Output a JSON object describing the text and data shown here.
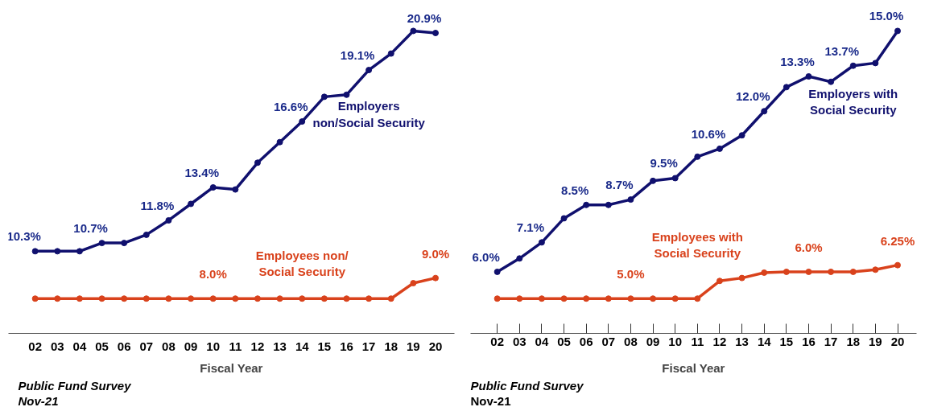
{
  "chart_data": [
    {
      "type": "line",
      "xlabel": "Fiscal Year",
      "categories": [
        "02",
        "03",
        "04",
        "05",
        "06",
        "07",
        "08",
        "09",
        "10",
        "11",
        "12",
        "13",
        "14",
        "15",
        "16",
        "17",
        "18",
        "19",
        "20"
      ],
      "marker": "circle",
      "grid": false,
      "series": [
        {
          "name": "Employers\nnon/Social Security",
          "color": "#10106e",
          "values": [
            10.3,
            10.3,
            10.3,
            10.7,
            10.7,
            11.1,
            11.8,
            12.6,
            13.4,
            13.3,
            14.6,
            15.6,
            16.6,
            17.8,
            17.9,
            19.1,
            19.9,
            21.0,
            20.9
          ],
          "value_labels": [
            "10.3%",
            null,
            null,
            "10.7%",
            null,
            null,
            "11.8%",
            null,
            "13.4%",
            null,
            null,
            null,
            "16.6%",
            null,
            null,
            "19.1%",
            null,
            null,
            "20.9%"
          ]
        },
        {
          "name": "Employees non/\nSocial Security",
          "color": "#d9421c",
          "values": [
            8.0,
            8.0,
            8.0,
            8.0,
            8.0,
            8.0,
            8.0,
            8.0,
            8.0,
            8.0,
            8.0,
            8.0,
            8.0,
            8.0,
            8.0,
            8.0,
            8.0,
            8.75,
            9.0
          ],
          "value_labels": [
            null,
            null,
            null,
            null,
            null,
            null,
            null,
            null,
            "8.0%",
            null,
            null,
            null,
            null,
            null,
            null,
            null,
            null,
            null,
            "9.0%"
          ]
        }
      ],
      "annotations": [
        "Public Fund Survey",
        "Nov-21"
      ]
    },
    {
      "type": "line",
      "xlabel": "Fiscal Year",
      "categories": [
        "02",
        "03",
        "04",
        "05",
        "06",
        "07",
        "08",
        "09",
        "10",
        "11",
        "12",
        "13",
        "14",
        "15",
        "16",
        "17",
        "18",
        "19",
        "20"
      ],
      "marker": "circle",
      "grid": false,
      "series": [
        {
          "name": "Employers with\nSocial Security",
          "color": "#10106e",
          "values": [
            6.0,
            6.5,
            7.1,
            8.0,
            8.5,
            8.5,
            8.7,
            9.4,
            9.5,
            10.3,
            10.6,
            11.1,
            12.0,
            12.9,
            13.3,
            13.1,
            13.7,
            13.8,
            15.0
          ],
          "value_labels": [
            "6.0%",
            null,
            "7.1%",
            null,
            "8.5%",
            null,
            "8.7%",
            null,
            "9.5%",
            null,
            "10.6%",
            null,
            "12.0%",
            null,
            "13.3%",
            null,
            "13.7%",
            null,
            "15.0%"
          ]
        },
        {
          "name": "Employees with\nSocial Security",
          "color": "#d9421c",
          "values": [
            5.0,
            5.0,
            5.0,
            5.0,
            5.0,
            5.0,
            5.0,
            5.0,
            5.0,
            5.0,
            5.66,
            5.77,
            5.97,
            6.0,
            6.0,
            6.0,
            6.0,
            6.08,
            6.25
          ],
          "value_labels": [
            null,
            null,
            null,
            null,
            null,
            null,
            "5.0%",
            null,
            null,
            null,
            null,
            null,
            null,
            null,
            "6.0%",
            null,
            null,
            null,
            "6.25%"
          ]
        }
      ],
      "annotations": [
        "Public Fund Survey",
        "Nov-21"
      ]
    }
  ]
}
